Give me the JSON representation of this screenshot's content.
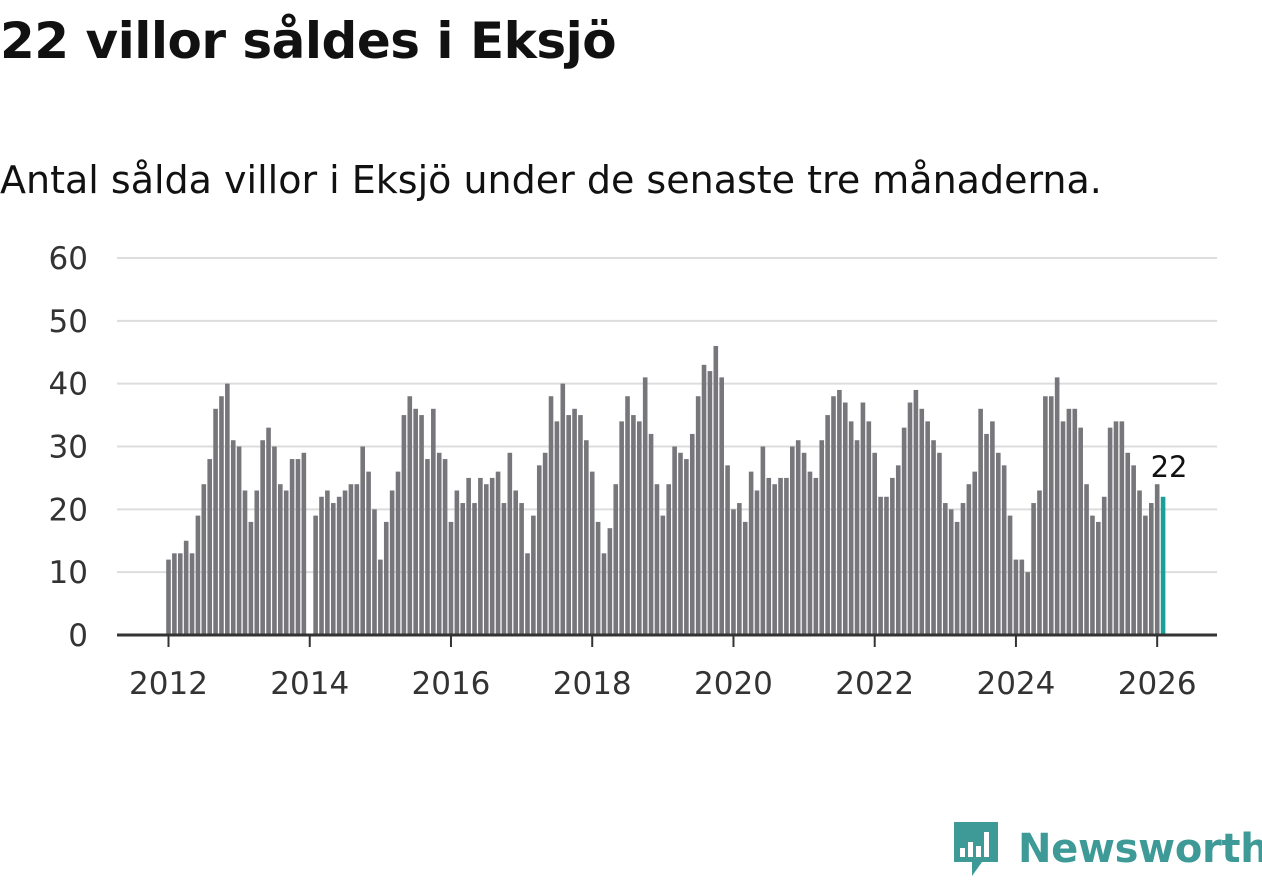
{
  "title": "22 villor såldes i Eksjö",
  "subtitle": "Antal sålda villor i Eksjö under de senaste tre månaderna.",
  "brand": {
    "name": "Newsworthy",
    "color": "#3d9a96",
    "icon": "newsworthy-logo-icon"
  },
  "colors": {
    "bar": "#76767b",
    "highlight": "#1a9f99",
    "grid": "#dddddd",
    "axis": "#333333"
  },
  "chart_data": {
    "type": "bar",
    "title": "22 villor såldes i Eksjö",
    "subtitle": "Antal sålda villor i Eksjö under de senaste tre månaderna.",
    "xlabel": "",
    "ylabel": "",
    "start": "2012-01",
    "frequency": "monthly",
    "x_ticks": [
      "2012",
      "2014",
      "2016",
      "2018",
      "2020",
      "2022",
      "2024",
      "2026"
    ],
    "y_ticks": [
      0,
      10,
      20,
      30,
      40,
      50,
      60
    ],
    "ylim": [
      0,
      60
    ],
    "grid": true,
    "highlight": {
      "label": "22",
      "value": 22,
      "period": "2026-02"
    },
    "values": [
      12,
      13,
      13,
      15,
      13,
      19,
      24,
      28,
      36,
      38,
      40,
      31,
      30,
      23,
      18,
      23,
      31,
      33,
      30,
      24,
      23,
      28,
      28,
      29,
      0,
      19,
      22,
      23,
      21,
      22,
      23,
      24,
      24,
      30,
      26,
      20,
      12,
      18,
      23,
      26,
      35,
      38,
      36,
      35,
      28,
      36,
      29,
      28,
      18,
      23,
      21,
      25,
      21,
      25,
      24,
      25,
      26,
      21,
      29,
      23,
      21,
      13,
      19,
      27,
      29,
      38,
      34,
      40,
      35,
      36,
      35,
      31,
      26,
      18,
      13,
      17,
      24,
      34,
      38,
      35,
      34,
      41,
      32,
      24,
      19,
      24,
      30,
      29,
      28,
      32,
      38,
      43,
      42,
      46,
      41,
      27,
      20,
      21,
      18,
      26,
      23,
      30,
      25,
      24,
      25,
      25,
      30,
      31,
      29,
      26,
      25,
      31,
      35,
      38,
      39,
      37,
      34,
      31,
      37,
      34,
      29,
      22,
      22,
      25,
      27,
      33,
      37,
      39,
      36,
      34,
      31,
      29,
      21,
      20,
      18,
      21,
      24,
      26,
      36,
      32,
      34,
      29,
      27,
      19,
      12,
      12,
      10,
      21,
      23,
      38,
      38,
      41,
      34,
      36,
      36,
      33,
      24,
      19,
      18,
      22,
      33,
      34,
      34,
      29,
      27,
      23,
      19,
      21,
      24,
      22
    ]
  }
}
